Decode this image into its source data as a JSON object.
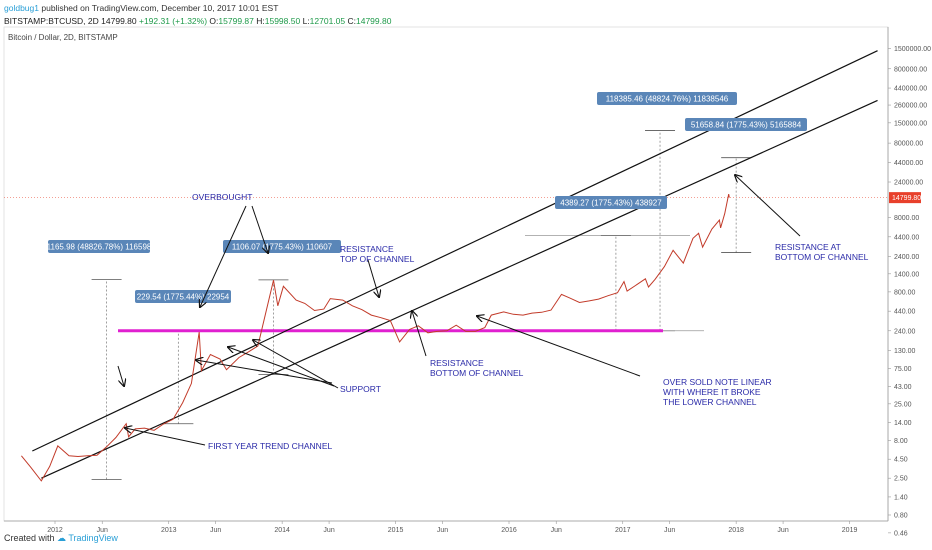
{
  "header": {
    "author": "goldbug1",
    "published": "published on TradingView.com, December 10, 2017 10:01 EST",
    "symbol": "BITSTAMP:BTCUSD, 2D",
    "last": "14799.80",
    "change": "+192.31 (+1.32%)",
    "o_label": "O:",
    "o_value": "15799.87",
    "h_label": "H:",
    "h_value": "15998.50",
    "l_label": "L:",
    "l_value": "12701.05",
    "c_label": "C:",
    "c_value": "14799.80"
  },
  "footer": {
    "created_with": "Created with",
    "brand": "TradingView"
  },
  "colors": {
    "candle": "#c23b2a",
    "support": "#e020d0",
    "annotation": "#2a2aa8",
    "label_bg": "#5a86b8",
    "price_tag": "#e8402b"
  },
  "chart_data": {
    "type": "line",
    "title": "Bitcoin / Dollar, 2D, BITSTAMP",
    "x_ticks": [
      "2012",
      "Jun",
      "2013",
      "Jun",
      "2014",
      "Jun",
      "2015",
      "Jun",
      "2016",
      "Jun",
      "2017",
      "Jun",
      "2018",
      "Jun",
      "2019"
    ],
    "y_ticks": [
      "1500000.00",
      "800000.00",
      "440000.00",
      "260000.00",
      "150000.00",
      "80000.00",
      "44000.00",
      "24000.00",
      "14799.80",
      "8000.00",
      "4400.00",
      "2400.00",
      "1400.00",
      "800.00",
      "440.00",
      "240.00",
      "130.00",
      "75.00",
      "43.00",
      "25.00",
      "14.00",
      "8.00",
      "4.50",
      "2.50",
      "1.40",
      "0.80",
      "0.46"
    ],
    "scale": "log",
    "price_line": 14799.8,
    "support_level": 240,
    "series": [
      {
        "values": [
          [
            "2011-09-15",
            5.0
          ],
          [
            "2011-10-15",
            3.5
          ],
          [
            "2011-11-18",
            2.3
          ],
          [
            "2011-12-15",
            3.6
          ],
          [
            "2012-01-10",
            6.8
          ],
          [
            "2012-02-15",
            5.0
          ],
          [
            "2012-03-15",
            4.9
          ],
          [
            "2012-04-15",
            5.0
          ],
          [
            "2012-05-15",
            5.1
          ],
          [
            "2012-06-15",
            6.6
          ],
          [
            "2012-07-15",
            8.8
          ],
          [
            "2012-08-17",
            13.5
          ],
          [
            "2012-08-25",
            9.0
          ],
          [
            "2012-09-15",
            11.5
          ],
          [
            "2012-10-15",
            11.8
          ],
          [
            "2012-11-15",
            11.0
          ],
          [
            "2012-12-15",
            13.4
          ],
          [
            "2013-01-15",
            15.5
          ],
          [
            "2013-02-15",
            26.0
          ],
          [
            "2013-03-15",
            47.0
          ],
          [
            "2013-04-09",
            230.0
          ],
          [
            "2013-04-16",
            70.0
          ],
          [
            "2013-05-15",
            115.0
          ],
          [
            "2013-06-15",
            100.0
          ],
          [
            "2013-07-06",
            72.0
          ],
          [
            "2013-08-15",
            105.0
          ],
          [
            "2013-09-15",
            125.0
          ],
          [
            "2013-10-15",
            150.0
          ],
          [
            "2013-11-18",
            600.0
          ],
          [
            "2013-12-04",
            1150.0
          ],
          [
            "2013-12-18",
            520.0
          ],
          [
            "2014-01-05",
            950.0
          ],
          [
            "2014-02-15",
            620.0
          ],
          [
            "2014-03-15",
            560.0
          ],
          [
            "2014-04-15",
            450.0
          ],
          [
            "2014-05-15",
            470.0
          ],
          [
            "2014-06-05",
            650.0
          ],
          [
            "2014-07-15",
            620.0
          ],
          [
            "2014-08-15",
            520.0
          ],
          [
            "2014-09-15",
            460.0
          ],
          [
            "2014-10-15",
            390.0
          ],
          [
            "2014-11-15",
            360.0
          ],
          [
            "2014-12-15",
            330.0
          ],
          [
            "2015-01-14",
            170.0
          ],
          [
            "2015-02-15",
            250.0
          ],
          [
            "2015-03-15",
            280.0
          ],
          [
            "2015-04-15",
            225.0
          ],
          [
            "2015-05-15",
            235.0
          ],
          [
            "2015-06-15",
            240.0
          ],
          [
            "2015-07-15",
            285.0
          ],
          [
            "2015-08-15",
            235.0
          ],
          [
            "2015-09-15",
            235.0
          ],
          [
            "2015-10-15",
            265.0
          ],
          [
            "2015-11-05",
            390.0
          ],
          [
            "2015-12-15",
            430.0
          ],
          [
            "2016-01-15",
            400.0
          ],
          [
            "2016-02-15",
            390.0
          ],
          [
            "2016-03-15",
            415.0
          ],
          [
            "2016-04-15",
            425.0
          ],
          [
            "2016-05-15",
            455.0
          ],
          [
            "2016-06-18",
            740.0
          ],
          [
            "2016-07-15",
            660.0
          ],
          [
            "2016-08-15",
            575.0
          ],
          [
            "2016-09-15",
            605.0
          ],
          [
            "2016-10-15",
            640.0
          ],
          [
            "2016-11-15",
            710.0
          ],
          [
            "2016-12-15",
            780.0
          ],
          [
            "2017-01-05",
            1100.0
          ],
          [
            "2017-01-15",
            820.0
          ],
          [
            "2017-02-15",
            1000.0
          ],
          [
            "2017-03-15",
            1200.0
          ],
          [
            "2017-03-25",
            930.0
          ],
          [
            "2017-04-15",
            1180.0
          ],
          [
            "2017-05-15",
            1750.0
          ],
          [
            "2017-06-12",
            2900.0
          ],
          [
            "2017-07-15",
            1950.0
          ],
          [
            "2017-08-15",
            4200.0
          ],
          [
            "2017-09-02",
            4900.0
          ],
          [
            "2017-09-15",
            3200.0
          ],
          [
            "2017-10-15",
            5600.0
          ],
          [
            "2017-11-08",
            7400.0
          ],
          [
            "2017-11-12",
            5800.0
          ],
          [
            "2017-11-25",
            9000.0
          ],
          [
            "2017-12-08",
            16500.0
          ],
          [
            "2017-12-10",
            14799.8
          ]
        ]
      }
    ],
    "lines": [
      {
        "from": [
          "2011-11-18",
          2.5
        ],
        "to": [
          "2019-04-01",
          300000
        ]
      },
      {
        "from": [
          "2011-10-20",
          5.8
        ],
        "to": [
          "2019-04-01",
          1400000
        ]
      }
    ],
    "measurements": [
      {
        "label": "1165.98 (48826.78%) 116598",
        "x": "2012-06-15",
        "y1": 2.4,
        "y2": 1170
      },
      {
        "label": "229.54 (1775.44%) 22954",
        "x": "2013-02-01",
        "y1": 13.5,
        "y2": 240
      },
      {
        "label": "1106.07 (1775.43%) 110607",
        "x": "2013-12-04",
        "y1": 62,
        "y2": 1160
      },
      {
        "label": "4389.27 (1775.43%) 438927",
        "x": "2016-12-10",
        "y1": 240,
        "y2": 4600
      },
      {
        "label": "118385.46 (48824.76%) 11838546",
        "x": "2017-05-01",
        "y1": 240,
        "y2": 118000
      },
      {
        "label": "51658.84 (1775.43%) 5165884",
        "x": "2018-01-01",
        "y1": 2700,
        "y2": 51000
      }
    ],
    "annotations": [
      {
        "lines": [
          "OVERBOUGHT"
        ]
      },
      {
        "lines": [
          "RESISTANCE",
          "TOP OF CHANNEL"
        ]
      },
      {
        "lines": [
          "RESISTANCE AT",
          "BOTTOM OF CHANNEL"
        ]
      },
      {
        "lines": [
          "SUPPORT"
        ]
      },
      {
        "lines": [
          "RESISTANCE",
          "BOTTOM OF CHANNEL"
        ]
      },
      {
        "lines": [
          "OVER SOLD NOTE LINEAR",
          "WITH WHERE IT BROKE",
          "THE LOWER CHANNEL"
        ]
      },
      {
        "lines": [
          "FIRST YEAR TREND CHANNEL"
        ]
      }
    ]
  }
}
